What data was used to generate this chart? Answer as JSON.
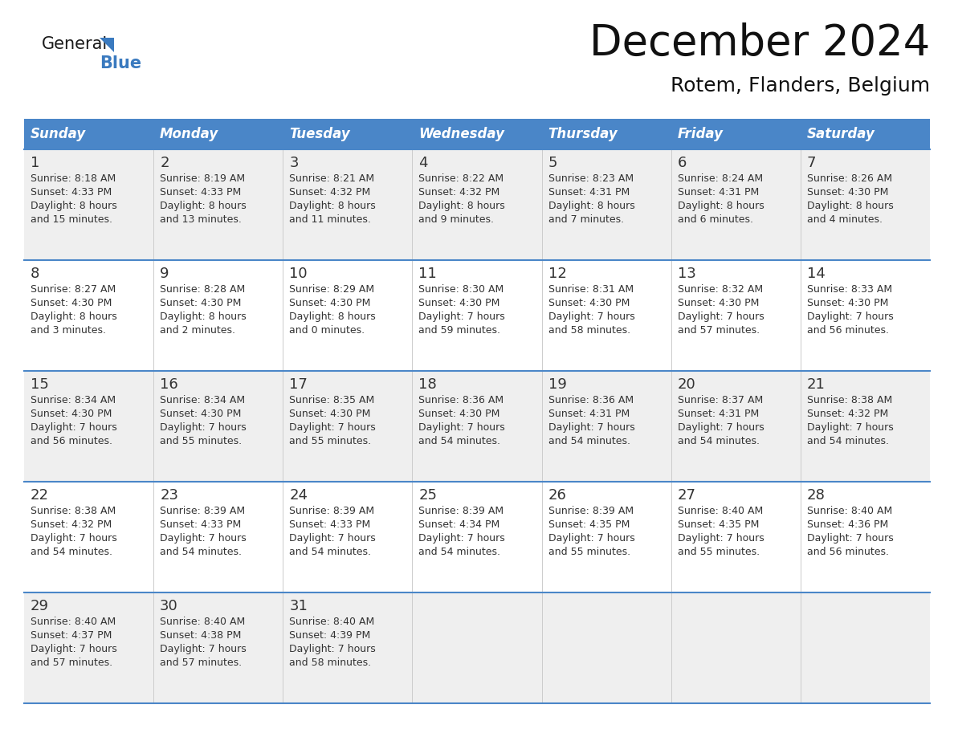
{
  "title": "December 2024",
  "subtitle": "Rotem, Flanders, Belgium",
  "days_of_week": [
    "Sunday",
    "Monday",
    "Tuesday",
    "Wednesday",
    "Thursday",
    "Friday",
    "Saturday"
  ],
  "header_bg": "#4a86c8",
  "header_text": "#ffffff",
  "row_bg_odd": "#efefef",
  "row_bg_even": "#ffffff",
  "border_color": "#4a86c8",
  "divider_color": "#cccccc",
  "text_color": "#333333",
  "calendar_data": [
    [
      {
        "day": 1,
        "sunrise": "8:18 AM",
        "sunset": "4:33 PM",
        "daylight_line1": "Daylight: 8 hours",
        "daylight_line2": "and 15 minutes."
      },
      {
        "day": 2,
        "sunrise": "8:19 AM",
        "sunset": "4:33 PM",
        "daylight_line1": "Daylight: 8 hours",
        "daylight_line2": "and 13 minutes."
      },
      {
        "day": 3,
        "sunrise": "8:21 AM",
        "sunset": "4:32 PM",
        "daylight_line1": "Daylight: 8 hours",
        "daylight_line2": "and 11 minutes."
      },
      {
        "day": 4,
        "sunrise": "8:22 AM",
        "sunset": "4:32 PM",
        "daylight_line1": "Daylight: 8 hours",
        "daylight_line2": "and 9 minutes."
      },
      {
        "day": 5,
        "sunrise": "8:23 AM",
        "sunset": "4:31 PM",
        "daylight_line1": "Daylight: 8 hours",
        "daylight_line2": "and 7 minutes."
      },
      {
        "day": 6,
        "sunrise": "8:24 AM",
        "sunset": "4:31 PM",
        "daylight_line1": "Daylight: 8 hours",
        "daylight_line2": "and 6 minutes."
      },
      {
        "day": 7,
        "sunrise": "8:26 AM",
        "sunset": "4:30 PM",
        "daylight_line1": "Daylight: 8 hours",
        "daylight_line2": "and 4 minutes."
      }
    ],
    [
      {
        "day": 8,
        "sunrise": "8:27 AM",
        "sunset": "4:30 PM",
        "daylight_line1": "Daylight: 8 hours",
        "daylight_line2": "and 3 minutes."
      },
      {
        "day": 9,
        "sunrise": "8:28 AM",
        "sunset": "4:30 PM",
        "daylight_line1": "Daylight: 8 hours",
        "daylight_line2": "and 2 minutes."
      },
      {
        "day": 10,
        "sunrise": "8:29 AM",
        "sunset": "4:30 PM",
        "daylight_line1": "Daylight: 8 hours",
        "daylight_line2": "and 0 minutes."
      },
      {
        "day": 11,
        "sunrise": "8:30 AM",
        "sunset": "4:30 PM",
        "daylight_line1": "Daylight: 7 hours",
        "daylight_line2": "and 59 minutes."
      },
      {
        "day": 12,
        "sunrise": "8:31 AM",
        "sunset": "4:30 PM",
        "daylight_line1": "Daylight: 7 hours",
        "daylight_line2": "and 58 minutes."
      },
      {
        "day": 13,
        "sunrise": "8:32 AM",
        "sunset": "4:30 PM",
        "daylight_line1": "Daylight: 7 hours",
        "daylight_line2": "and 57 minutes."
      },
      {
        "day": 14,
        "sunrise": "8:33 AM",
        "sunset": "4:30 PM",
        "daylight_line1": "Daylight: 7 hours",
        "daylight_line2": "and 56 minutes."
      }
    ],
    [
      {
        "day": 15,
        "sunrise": "8:34 AM",
        "sunset": "4:30 PM",
        "daylight_line1": "Daylight: 7 hours",
        "daylight_line2": "and 56 minutes."
      },
      {
        "day": 16,
        "sunrise": "8:34 AM",
        "sunset": "4:30 PM",
        "daylight_line1": "Daylight: 7 hours",
        "daylight_line2": "and 55 minutes."
      },
      {
        "day": 17,
        "sunrise": "8:35 AM",
        "sunset": "4:30 PM",
        "daylight_line1": "Daylight: 7 hours",
        "daylight_line2": "and 55 minutes."
      },
      {
        "day": 18,
        "sunrise": "8:36 AM",
        "sunset": "4:30 PM",
        "daylight_line1": "Daylight: 7 hours",
        "daylight_line2": "and 54 minutes."
      },
      {
        "day": 19,
        "sunrise": "8:36 AM",
        "sunset": "4:31 PM",
        "daylight_line1": "Daylight: 7 hours",
        "daylight_line2": "and 54 minutes."
      },
      {
        "day": 20,
        "sunrise": "8:37 AM",
        "sunset": "4:31 PM",
        "daylight_line1": "Daylight: 7 hours",
        "daylight_line2": "and 54 minutes."
      },
      {
        "day": 21,
        "sunrise": "8:38 AM",
        "sunset": "4:32 PM",
        "daylight_line1": "Daylight: 7 hours",
        "daylight_line2": "and 54 minutes."
      }
    ],
    [
      {
        "day": 22,
        "sunrise": "8:38 AM",
        "sunset": "4:32 PM",
        "daylight_line1": "Daylight: 7 hours",
        "daylight_line2": "and 54 minutes."
      },
      {
        "day": 23,
        "sunrise": "8:39 AM",
        "sunset": "4:33 PM",
        "daylight_line1": "Daylight: 7 hours",
        "daylight_line2": "and 54 minutes."
      },
      {
        "day": 24,
        "sunrise": "8:39 AM",
        "sunset": "4:33 PM",
        "daylight_line1": "Daylight: 7 hours",
        "daylight_line2": "and 54 minutes."
      },
      {
        "day": 25,
        "sunrise": "8:39 AM",
        "sunset": "4:34 PM",
        "daylight_line1": "Daylight: 7 hours",
        "daylight_line2": "and 54 minutes."
      },
      {
        "day": 26,
        "sunrise": "8:39 AM",
        "sunset": "4:35 PM",
        "daylight_line1": "Daylight: 7 hours",
        "daylight_line2": "and 55 minutes."
      },
      {
        "day": 27,
        "sunrise": "8:40 AM",
        "sunset": "4:35 PM",
        "daylight_line1": "Daylight: 7 hours",
        "daylight_line2": "and 55 minutes."
      },
      {
        "day": 28,
        "sunrise": "8:40 AM",
        "sunset": "4:36 PM",
        "daylight_line1": "Daylight: 7 hours",
        "daylight_line2": "and 56 minutes."
      }
    ],
    [
      {
        "day": 29,
        "sunrise": "8:40 AM",
        "sunset": "4:37 PM",
        "daylight_line1": "Daylight: 7 hours",
        "daylight_line2": "and 57 minutes."
      },
      {
        "day": 30,
        "sunrise": "8:40 AM",
        "sunset": "4:38 PM",
        "daylight_line1": "Daylight: 7 hours",
        "daylight_line2": "and 57 minutes."
      },
      {
        "day": 31,
        "sunrise": "8:40 AM",
        "sunset": "4:39 PM",
        "daylight_line1": "Daylight: 7 hours",
        "daylight_line2": "and 58 minutes."
      },
      null,
      null,
      null,
      null
    ]
  ]
}
